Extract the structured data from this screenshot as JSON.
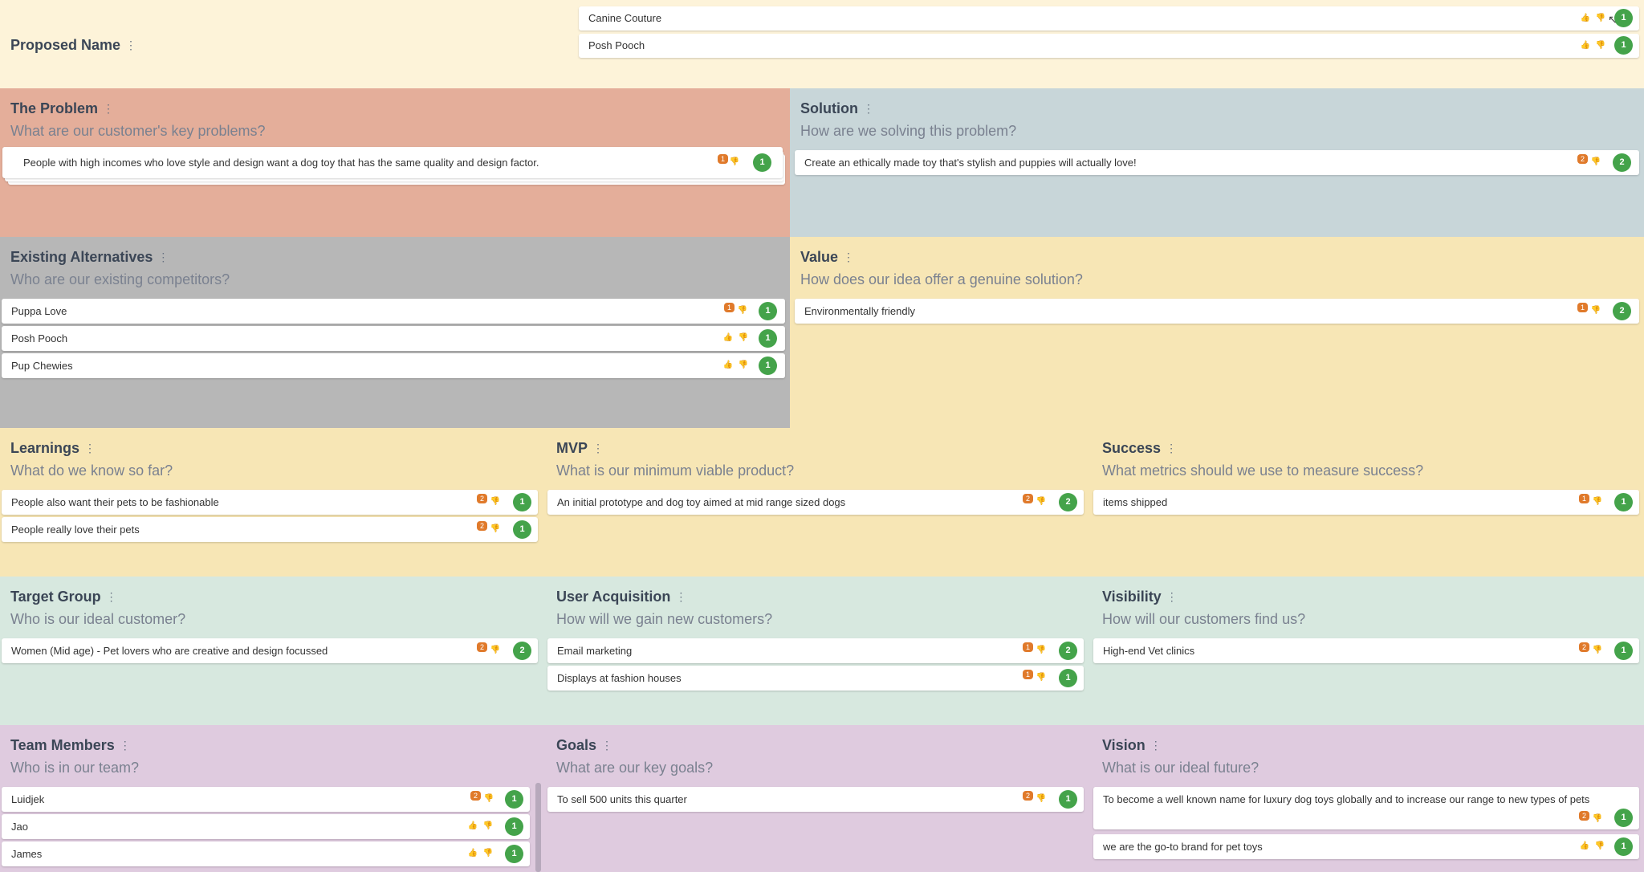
{
  "colors": {
    "proposed": "#fdf3d9",
    "problem": "#e4ae9a",
    "solution": "#c8d6d9",
    "alternatives": "#b7b7b7",
    "value": "#f7e6b5",
    "learnings": "#f7e6b5",
    "target": "#d7e8df",
    "team": "#dfcbdf",
    "vote": "#44a34a",
    "comment_badge": "#e07a2b"
  },
  "proposed": {
    "title": "Proposed Name",
    "cards": [
      {
        "text": "Canine Couture",
        "votes": "1"
      },
      {
        "text": "Posh Pooch",
        "votes": "1"
      }
    ]
  },
  "problem": {
    "title": "The Problem",
    "subtitle": "What are our customer's key problems?",
    "cards": [
      {
        "text": "People with high incomes who love style and design want a dog toy that has the same quality and design factor.",
        "comments": "1",
        "votes": "1"
      }
    ]
  },
  "solution": {
    "title": "Solution",
    "subtitle": "How are we solving this problem?",
    "cards": [
      {
        "text": "Create an ethically made toy that's stylish and puppies will actually love!",
        "comments": "2",
        "votes": "2"
      }
    ]
  },
  "alternatives": {
    "title": "Existing Alternatives",
    "subtitle": "Who are our existing competitors?",
    "cards": [
      {
        "text": "Puppa Love",
        "comments": "1",
        "votes": "1"
      },
      {
        "text": "Posh Pooch",
        "votes": "1"
      },
      {
        "text": "Pup Chewies",
        "votes": "1"
      }
    ]
  },
  "value": {
    "title": "Value",
    "subtitle": "How does our idea offer a genuine solution?",
    "cards": [
      {
        "text": "Environmentally friendly",
        "comments": "1",
        "votes": "2"
      }
    ]
  },
  "learnings": {
    "title": "Learnings",
    "subtitle": "What do we know so far?",
    "cards": [
      {
        "text": "People also want their pets to be fashionable",
        "comments": "2",
        "votes": "1"
      },
      {
        "text": "People really love their pets",
        "comments": "2",
        "votes": "1"
      }
    ]
  },
  "mvp": {
    "title": "MVP",
    "subtitle": "What is our minimum viable product?",
    "cards": [
      {
        "text": "An initial prototype and dog toy aimed at mid range sized dogs",
        "comments": "2",
        "votes": "2"
      }
    ]
  },
  "success": {
    "title": "Success",
    "subtitle": "What metrics should we use to measure success?",
    "cards": [
      {
        "text": "items shipped",
        "comments": "1",
        "votes": "1"
      }
    ]
  },
  "target": {
    "title": "Target Group",
    "subtitle": "Who is our ideal customer?",
    "cards": [
      {
        "text": "Women (Mid age) - Pet lovers who are creative and design focussed",
        "comments": "2",
        "votes": "2"
      }
    ]
  },
  "acquisition": {
    "title": "User Acquisition",
    "subtitle": "How will we gain new customers?",
    "cards": [
      {
        "text": "Email marketing",
        "comments": "1",
        "votes": "2"
      },
      {
        "text": "Displays at fashion houses",
        "comments": "1",
        "votes": "1"
      }
    ]
  },
  "visibility": {
    "title": "Visibility",
    "subtitle": "How will our customers find us?",
    "cards": [
      {
        "text": "High-end Vet clinics",
        "comments": "2",
        "votes": "1"
      }
    ]
  },
  "team": {
    "title": "Team Members",
    "subtitle": "Who is in our team?",
    "cards": [
      {
        "text": "Luidjek",
        "comments": "2",
        "votes": "1"
      },
      {
        "text": "Jao",
        "votes": "1"
      },
      {
        "text": "James",
        "votes": "1"
      }
    ]
  },
  "goals": {
    "title": "Goals",
    "subtitle": "What are our key goals?",
    "cards": [
      {
        "text": "To sell 500 units this quarter",
        "comments": "2",
        "votes": "1"
      }
    ]
  },
  "vision": {
    "title": "Vision",
    "subtitle": "What is our ideal future?",
    "cards": [
      {
        "text": "To become a well known name for luxury dog toys globally and to increase our range to new types of pets",
        "comments": "2",
        "votes": "1"
      },
      {
        "text": "we are the go-to brand for pet toys",
        "votes": "1"
      }
    ]
  },
  "icons": {
    "menu": "⋮",
    "thumbs_up": "👍",
    "thumbs_down": "👎"
  }
}
